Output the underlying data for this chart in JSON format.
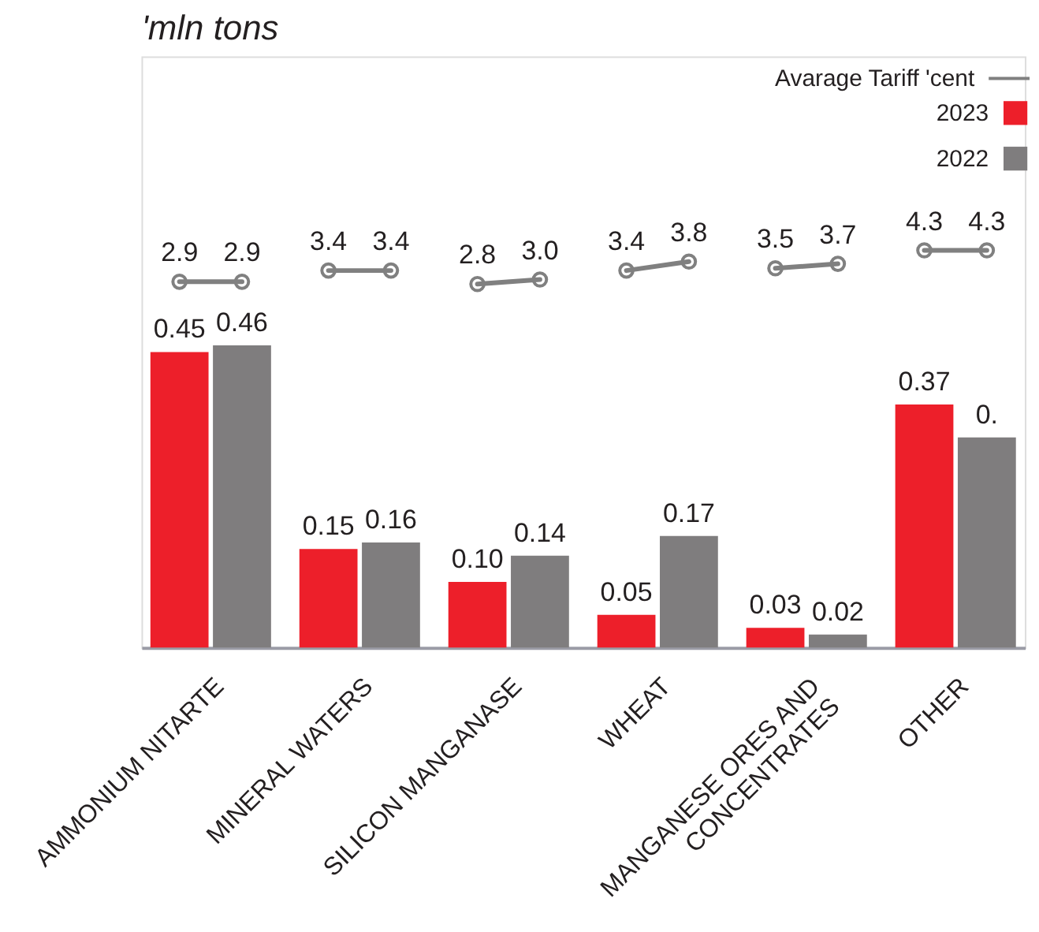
{
  "chart_data": {
    "type": "bar",
    "title": "'mln tons",
    "categories": [
      "AMMONIUM NITARTE",
      "MINERAL WATERS",
      "SILICON MANGANASE",
      "WHEAT",
      "MANGANESE ORES AND\nCONCENTRATES",
      "OTHER"
    ],
    "series": [
      {
        "name": "2023",
        "color": "#ed1f2a",
        "values": [
          0.45,
          0.15,
          0.1,
          0.05,
          0.03,
          0.37
        ],
        "value_labels": [
          "0.45",
          "0.15",
          "0.10",
          "0.05",
          "0.03",
          "0.37"
        ]
      },
      {
        "name": "2022",
        "color": "#7f7d7e",
        "values": [
          0.46,
          0.16,
          0.14,
          0.17,
          0.02,
          0.32
        ],
        "value_labels": [
          "0.46",
          "0.16",
          "0.14",
          "0.17",
          "0.02",
          "0."
        ]
      },
      {
        "name": "Avarage Tariff 'cent",
        "type": "scatter",
        "axis": "y2",
        "color": "#808080",
        "marker": "circle",
        "x": [
          "AMMONIUM NITARTE",
          "MINERAL WATERS",
          "SILICON MANGANASE",
          "WHEAT",
          "MANGANESE ORES AND\nCONCENTRATES",
          "OTHER"
        ],
        "values": [
          2.9,
          3.4,
          2.8,
          3.4,
          3.5,
          4.3
        ],
        "value_labels": [
          "2.9",
          "3.4",
          "2.8",
          "3.4",
          "3.5",
          "4.3"
        ]
      },
      {
        "type": "scatter",
        "axis": "y2",
        "color": "#808080",
        "marker": "circle",
        "x": [
          "AMMONIUM NITARTE",
          "MINERAL WATERS",
          "SILICON MANGANASE",
          "WHEAT",
          "MANGANESE ORES AND\nCONCENTRATES",
          "OTHER"
        ],
        "values": [
          2.9,
          3.4,
          3.0,
          3.8,
          3.7,
          4.3
        ],
        "value_labels": [
          "2.9",
          "3.4",
          "3.0",
          "3.8",
          "3.7",
          "4.3"
        ]
      }
    ],
    "ylim": [
      0,
      0.9
    ],
    "tick_labels": "x",
    "legend": "top right"
  }
}
